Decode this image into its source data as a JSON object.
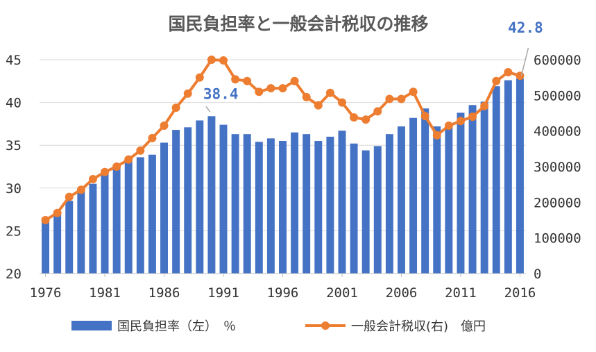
{
  "chart_data": {
    "type": "bar+line",
    "title": "国民負担率と一般会計税収の推移",
    "years": [
      1976,
      1977,
      1978,
      1979,
      1980,
      1981,
      1982,
      1983,
      1984,
      1985,
      1986,
      1987,
      1988,
      1989,
      1990,
      1991,
      1992,
      1993,
      1994,
      1995,
      1996,
      1997,
      1998,
      1999,
      2000,
      2001,
      2002,
      2003,
      2004,
      2005,
      2006,
      2007,
      2008,
      2009,
      2010,
      2011,
      2012,
      2013,
      2014,
      2015,
      2016
    ],
    "x_tick_labels": [
      "1976",
      "1981",
      "1986",
      "1991",
      "1996",
      "2001",
      "2006",
      "2011",
      "2016"
    ],
    "series": [
      {
        "name": "国民負担率（左）　％",
        "kind": "bar",
        "axis": "left",
        "color": "#4472C4",
        "values": [
          26.5,
          27.3,
          28.5,
          29.8,
          30.5,
          31.8,
          32.5,
          33.1,
          33.6,
          33.9,
          35.3,
          36.8,
          37.1,
          37.9,
          38.4,
          37.4,
          36.3,
          36.3,
          35.4,
          35.8,
          35.5,
          36.5,
          36.3,
          35.5,
          36.0,
          36.7,
          35.2,
          34.4,
          34.9,
          36.3,
          37.2,
          38.2,
          39.3,
          37.2,
          37.2,
          38.8,
          39.7,
          40.1,
          41.9,
          42.6,
          42.8
        ]
      },
      {
        "name": "一般会計税収(右)　億円",
        "kind": "line",
        "axis": "right",
        "color": "#ED7D31",
        "values": [
          150000,
          170000,
          215000,
          235000,
          265000,
          285000,
          300000,
          320000,
          345000,
          380000,
          415000,
          465000,
          505000,
          550000,
          600000,
          598000,
          545000,
          540000,
          510000,
          520000,
          520000,
          540000,
          495000,
          472000,
          507000,
          480000,
          438000,
          432000,
          455000,
          490000,
          490000,
          510000,
          442000,
          388000,
          415000,
          428000,
          440000,
          470000,
          540000,
          565000,
          555000
        ]
      }
    ],
    "y_left": {
      "min": 20,
      "max": 45,
      "ticks": [
        "20",
        "25",
        "30",
        "35",
        "40",
        "45"
      ]
    },
    "y_right": {
      "min": 0,
      "max": 600000,
      "ticks": [
        "0",
        "100000",
        "200000",
        "300000",
        "400000",
        "500000",
        "600000"
      ]
    },
    "annotations": [
      {
        "text": "38.4",
        "year": 1990
      },
      {
        "text": "42.8",
        "year": 2016
      }
    ],
    "legend": "bottom"
  }
}
